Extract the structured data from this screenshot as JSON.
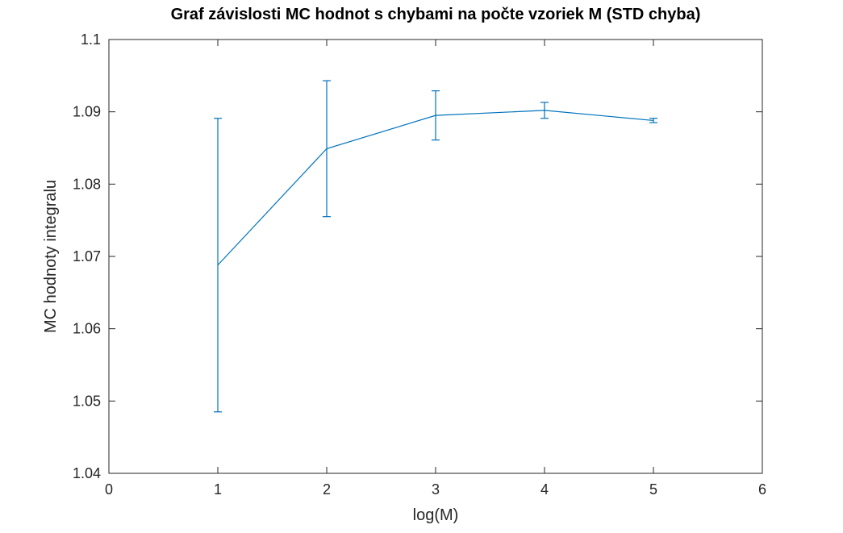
{
  "chart_data": {
    "type": "line",
    "title": "Graf závislosti MC hodnot s chybami na počte vzoriek M (STD chyba)",
    "xlabel": "log(M)",
    "ylabel": "MC hodnoty integralu",
    "xlim": [
      0,
      6
    ],
    "ylim": [
      1.04,
      1.1
    ],
    "x_ticks": [
      "0",
      "1",
      "2",
      "3",
      "4",
      "5",
      "6"
    ],
    "y_ticks": [
      "1.04",
      "1.05",
      "1.06",
      "1.07",
      "1.08",
      "1.09",
      "1.1"
    ],
    "grid": false,
    "series": [
      {
        "x": [
          1,
          2,
          3,
          4,
          5
        ],
        "values": [
          1.0688,
          1.0849,
          1.0895,
          1.0902,
          1.0888
        ],
        "error": [
          0.0203,
          0.0094,
          0.0034,
          0.0011,
          0.0003
        ],
        "color": "#0072BD"
      }
    ]
  }
}
